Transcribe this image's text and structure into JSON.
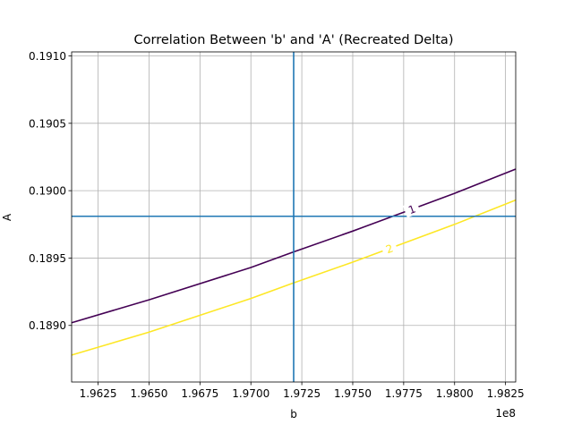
{
  "chart_data": {
    "type": "line",
    "title": "Correlation Between 'b' and 'A' (Recreated Delta)",
    "xlabel": "b",
    "ylabel": "A",
    "x_offset_label": "1e8",
    "xlim": [
      1.9612,
      1.983
    ],
    "ylim": [
      0.18858,
      0.19103
    ],
    "x_ticks": [
      1.9625,
      1.965,
      1.9675,
      1.97,
      1.9725,
      1.975,
      1.9775,
      1.98,
      1.9825
    ],
    "x_tick_labels": [
      "1.9625",
      "1.9650",
      "1.9675",
      "1.9700",
      "1.9725",
      "1.9750",
      "1.9775",
      "1.9800",
      "1.9825"
    ],
    "y_ticks": [
      0.189,
      0.1895,
      0.19,
      0.1905,
      0.191
    ],
    "y_tick_labels": [
      "0.1890",
      "0.1895",
      "0.1900",
      "0.1905",
      "0.1910"
    ],
    "grid": true,
    "series": [
      {
        "label": "1",
        "color": "#440154",
        "x": [
          1.9612,
          1.965,
          1.97,
          1.972,
          1.975,
          1.9775,
          1.98,
          1.983
        ],
        "y": [
          0.18902,
          0.18919,
          0.18943,
          0.18954,
          0.1897,
          0.18984,
          0.18998,
          0.19016
        ]
      },
      {
        "label": "2",
        "color": "#fde725",
        "x": [
          1.9612,
          1.965,
          1.97,
          1.972,
          1.975,
          1.9775,
          1.98,
          1.983
        ],
        "y": [
          0.18878,
          0.18895,
          0.1892,
          0.18931,
          0.18947,
          0.18961,
          0.18975,
          0.18993
        ]
      }
    ],
    "reference_lines": [
      {
        "orientation": "vertical",
        "value": 1.9721,
        "color": "#1f77b4"
      },
      {
        "orientation": "horizontal",
        "value": 0.18981,
        "color": "#1f77b4"
      }
    ]
  }
}
